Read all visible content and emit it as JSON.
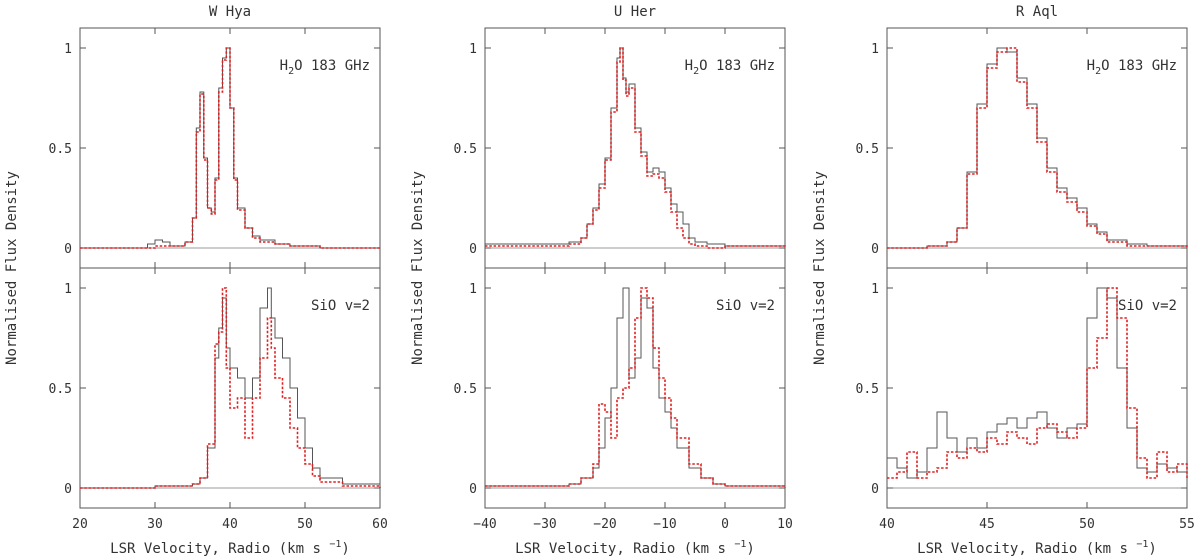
{
  "figure": {
    "ylabel": "Normalised Flux Density",
    "xlabel": "LSR Velocity, Radio (km s",
    "xlabel_sup": "−1",
    "xlabel_close": ")",
    "colors": {
      "series_a": "#555555",
      "series_b": "#e02020",
      "axis": "#555555"
    }
  },
  "chart_data": [
    {
      "type": "line",
      "title": "W Hya",
      "line_label": "H2O 183 GHz",
      "xlim": [
        20,
        60
      ],
      "ylim": [
        -0.1,
        1.1
      ],
      "yticks": [
        0,
        0.5,
        1
      ],
      "ytick_labels": [
        "0",
        "0.5",
        "1"
      ],
      "xticks": [
        20,
        30,
        40,
        50,
        60
      ],
      "xtick_labels": [],
      "series": [
        {
          "name": "grey",
          "style": "solid",
          "x": [
            20,
            28,
            29,
            30,
            31,
            32,
            33,
            34,
            35,
            35.5,
            36,
            36.5,
            37,
            37.5,
            38,
            38.5,
            39,
            39.5,
            40,
            40.5,
            41,
            42,
            43,
            44,
            46,
            48,
            52,
            60
          ],
          "y": [
            0,
            0,
            0.02,
            0.04,
            0.03,
            0.01,
            0.01,
            0.03,
            0.15,
            0.6,
            0.78,
            0.45,
            0.2,
            0.18,
            0.35,
            0.8,
            0.95,
            1.0,
            0.7,
            0.35,
            0.2,
            0.1,
            0.06,
            0.04,
            0.02,
            0.01,
            0,
            0
          ]
        },
        {
          "name": "red",
          "style": "dotted",
          "x": [
            20,
            28,
            30,
            32,
            34,
            35,
            35.5,
            36,
            36.5,
            37,
            37.5,
            38,
            38.5,
            39,
            39.5,
            40,
            40.5,
            41,
            42,
            43,
            44,
            46,
            48,
            52,
            60
          ],
          "y": [
            0,
            0,
            0.01,
            0.01,
            0.03,
            0.15,
            0.58,
            0.77,
            0.44,
            0.2,
            0.17,
            0.34,
            0.78,
            0.94,
            1.0,
            0.7,
            0.34,
            0.19,
            0.1,
            0.05,
            0.03,
            0.02,
            0.01,
            0,
            0
          ]
        }
      ]
    },
    {
      "type": "line",
      "title": "U Her",
      "line_label": "H2O 183 GHz",
      "xlim": [
        -40,
        10
      ],
      "ylim": [
        -0.1,
        1.1
      ],
      "yticks": [
        0,
        0.5,
        1
      ],
      "ytick_labels": [
        "0",
        "0.5",
        "1"
      ],
      "xticks": [
        -40,
        -30,
        -20,
        -10,
        0,
        10
      ],
      "xtick_labels": [],
      "series": [
        {
          "name": "grey",
          "style": "solid",
          "x": [
            -40,
            -30,
            -26,
            -24,
            -23,
            -22,
            -21,
            -20,
            -19,
            -18,
            -17.5,
            -17,
            -16.5,
            -16,
            -15,
            -14,
            -13,
            -12,
            -11,
            -10,
            -9,
            -8,
            -7,
            -6,
            -5,
            -3,
            0,
            10
          ],
          "y": [
            0.02,
            0.02,
            0.03,
            0.05,
            0.12,
            0.2,
            0.32,
            0.45,
            0.7,
            0.95,
            1.0,
            0.85,
            0.78,
            0.82,
            0.6,
            0.48,
            0.38,
            0.4,
            0.38,
            0.3,
            0.22,
            0.18,
            0.12,
            0.05,
            0.03,
            0.02,
            0.01,
            0
          ]
        },
        {
          "name": "red",
          "style": "dotted",
          "x": [
            -40,
            -30,
            -26,
            -24,
            -23,
            -22,
            -21,
            -20,
            -19,
            -18,
            -17.5,
            -17,
            -16.5,
            -16,
            -15,
            -14,
            -13,
            -12,
            -11,
            -10,
            -9,
            -8,
            -7,
            -6,
            -5,
            -3,
            0,
            10
          ],
          "y": [
            0.01,
            0.01,
            0.02,
            0.05,
            0.12,
            0.19,
            0.3,
            0.44,
            0.68,
            0.93,
            1.0,
            0.84,
            0.76,
            0.8,
            0.58,
            0.46,
            0.36,
            0.37,
            0.35,
            0.28,
            0.18,
            0.1,
            0.05,
            0.02,
            0.01,
            0.0,
            0.01,
            0
          ]
        }
      ]
    },
    {
      "type": "line",
      "title": "R Aql",
      "line_label": "H2O 183 GHz",
      "xlim": [
        40,
        55
      ],
      "ylim": [
        -0.1,
        1.1
      ],
      "yticks": [
        0,
        0.5,
        1
      ],
      "ytick_labels": [
        "0",
        "0.5",
        "1"
      ],
      "xticks": [
        40,
        45,
        50,
        55
      ],
      "xtick_labels": [],
      "series": [
        {
          "name": "grey",
          "style": "solid",
          "x": [
            40,
            42,
            43,
            43.5,
            44,
            44.5,
            45,
            45.5,
            46,
            46.5,
            47,
            47.5,
            48,
            48.5,
            49,
            49.5,
            50,
            50.5,
            51,
            52,
            53,
            55
          ],
          "y": [
            0,
            0.01,
            0.03,
            0.1,
            0.38,
            0.72,
            0.92,
            1.0,
            0.98,
            0.85,
            0.72,
            0.55,
            0.4,
            0.3,
            0.25,
            0.2,
            0.12,
            0.08,
            0.04,
            0.02,
            0.01,
            0
          ]
        },
        {
          "name": "red",
          "style": "dotted",
          "x": [
            40,
            42,
            43,
            43.5,
            44,
            44.5,
            45,
            45.5,
            46,
            46.5,
            47,
            47.5,
            48,
            48.5,
            49,
            49.5,
            50,
            50.5,
            51,
            52,
            53,
            55
          ],
          "y": [
            0,
            0.01,
            0.03,
            0.1,
            0.37,
            0.7,
            0.9,
            0.98,
            1.0,
            0.83,
            0.7,
            0.53,
            0.38,
            0.28,
            0.23,
            0.18,
            0.11,
            0.07,
            0.03,
            0.01,
            0.01,
            0
          ]
        }
      ]
    },
    {
      "type": "line",
      "title": "",
      "line_label": "SiO v=2",
      "xlim": [
        20,
        60
      ],
      "ylim": [
        -0.1,
        1.1
      ],
      "yticks": [
        0,
        0.5,
        1
      ],
      "ytick_labels": [
        "0",
        "0.5",
        "1"
      ],
      "xticks": [
        20,
        30,
        40,
        50,
        60
      ],
      "xtick_labels": [
        "20",
        "30",
        "40",
        "50",
        "60"
      ],
      "series": [
        {
          "name": "grey",
          "style": "solid",
          "x": [
            20,
            30,
            35,
            36,
            37,
            38,
            38.5,
            39,
            39.5,
            40,
            41,
            42,
            43,
            44,
            45,
            45.5,
            46,
            47,
            48,
            49,
            50,
            51,
            52,
            55,
            60
          ],
          "y": [
            0,
            0.01,
            0.02,
            0.05,
            0.2,
            0.65,
            0.8,
            0.95,
            0.7,
            0.6,
            0.55,
            0.45,
            0.55,
            0.9,
            1.0,
            0.85,
            0.75,
            0.65,
            0.5,
            0.35,
            0.2,
            0.1,
            0.05,
            0.02,
            0
          ]
        },
        {
          "name": "red",
          "style": "dotted",
          "x": [
            20,
            30,
            35,
            36,
            37,
            38,
            38.5,
            39,
            39.5,
            40,
            41,
            42,
            43,
            44,
            45,
            45.5,
            46,
            47,
            48,
            49,
            50,
            51,
            52,
            55,
            60
          ],
          "y": [
            0,
            0.01,
            0.02,
            0.05,
            0.22,
            0.72,
            0.78,
            1.0,
            0.6,
            0.4,
            0.45,
            0.25,
            0.45,
            0.65,
            0.85,
            0.7,
            0.55,
            0.45,
            0.3,
            0.2,
            0.12,
            0.06,
            0.03,
            0.01,
            0
          ]
        }
      ]
    },
    {
      "type": "line",
      "title": "",
      "line_label": "SiO v=2",
      "xlim": [
        -40,
        10
      ],
      "ylim": [
        -0.1,
        1.1
      ],
      "yticks": [
        0,
        0.5,
        1
      ],
      "ytick_labels": [
        "0",
        "0.5",
        "1"
      ],
      "xticks": [
        -40,
        -30,
        -20,
        -10,
        0,
        10
      ],
      "xtick_labels": [
        "−40",
        "−30",
        "−20",
        "−10",
        "0",
        "10"
      ],
      "series": [
        {
          "name": "grey",
          "style": "solid",
          "x": [
            -40,
            -30,
            -26,
            -24,
            -22,
            -21,
            -20,
            -19,
            -18,
            -17,
            -16,
            -15,
            -14,
            -13,
            -12,
            -11,
            -10,
            -9,
            -8,
            -6,
            -4,
            -2,
            0,
            10
          ],
          "y": [
            0.01,
            0.01,
            0.02,
            0.05,
            0.1,
            0.2,
            0.35,
            0.5,
            0.85,
            1.0,
            0.55,
            0.65,
            0.95,
            0.9,
            0.6,
            0.45,
            0.38,
            0.3,
            0.2,
            0.1,
            0.05,
            0.02,
            0.01,
            0
          ]
        },
        {
          "name": "red",
          "style": "dotted",
          "x": [
            -40,
            -30,
            -26,
            -24,
            -22,
            -21,
            -20,
            -19,
            -18,
            -17,
            -16,
            -15,
            -14,
            -13,
            -12,
            -11,
            -10,
            -9,
            -8,
            -6,
            -4,
            -2,
            0,
            10
          ],
          "y": [
            0.01,
            0.01,
            0.02,
            0.05,
            0.12,
            0.42,
            0.38,
            0.25,
            0.45,
            0.5,
            0.6,
            0.85,
            1.0,
            0.95,
            0.7,
            0.55,
            0.45,
            0.35,
            0.25,
            0.12,
            0.05,
            0.02,
            0.01,
            0
          ]
        }
      ]
    },
    {
      "type": "line",
      "title": "",
      "line_label": "SiO v=2",
      "xlim": [
        40,
        55
      ],
      "ylim": [
        -0.1,
        1.1
      ],
      "yticks": [
        0,
        0.5,
        1
      ],
      "ytick_labels": [
        "0",
        "0.5",
        "1"
      ],
      "xticks": [
        40,
        45,
        50,
        55
      ],
      "xtick_labels": [
        "40",
        "45",
        "50",
        "55"
      ],
      "series": [
        {
          "name": "grey",
          "style": "solid",
          "x": [
            40,
            40.5,
            41,
            41.5,
            42,
            42.5,
            43,
            43.5,
            44,
            44.5,
            45,
            45.5,
            46,
            46.5,
            47,
            47.5,
            48,
            48.5,
            49,
            49.5,
            50,
            50.5,
            51,
            51.5,
            52,
            52.5,
            53,
            53.5,
            54,
            54.5,
            55
          ],
          "y": [
            0.15,
            0.1,
            0.05,
            0.08,
            0.2,
            0.38,
            0.25,
            0.18,
            0.25,
            0.2,
            0.28,
            0.32,
            0.35,
            0.3,
            0.35,
            0.38,
            0.3,
            0.25,
            0.3,
            0.32,
            0.85,
            1.0,
            0.95,
            0.6,
            0.3,
            0.1,
            0.08,
            0.12,
            0.1,
            0.08,
            0.05
          ]
        },
        {
          "name": "red",
          "style": "dotted",
          "x": [
            40,
            40.5,
            41,
            41.5,
            42,
            42.5,
            43,
            43.5,
            44,
            44.5,
            45,
            45.5,
            46,
            46.5,
            47,
            47.5,
            48,
            48.5,
            49,
            49.5,
            50,
            50.5,
            51,
            51.5,
            52,
            52.5,
            53,
            53.5,
            54,
            54.5,
            55
          ],
          "y": [
            0.05,
            0.08,
            0.18,
            0.05,
            0.08,
            0.1,
            0.18,
            0.15,
            0.2,
            0.18,
            0.25,
            0.22,
            0.28,
            0.25,
            0.22,
            0.3,
            0.32,
            0.28,
            0.25,
            0.3,
            0.6,
            0.75,
            1.0,
            0.85,
            0.4,
            0.15,
            0.05,
            0.18,
            0.08,
            0.12,
            0.05
          ]
        }
      ]
    }
  ]
}
